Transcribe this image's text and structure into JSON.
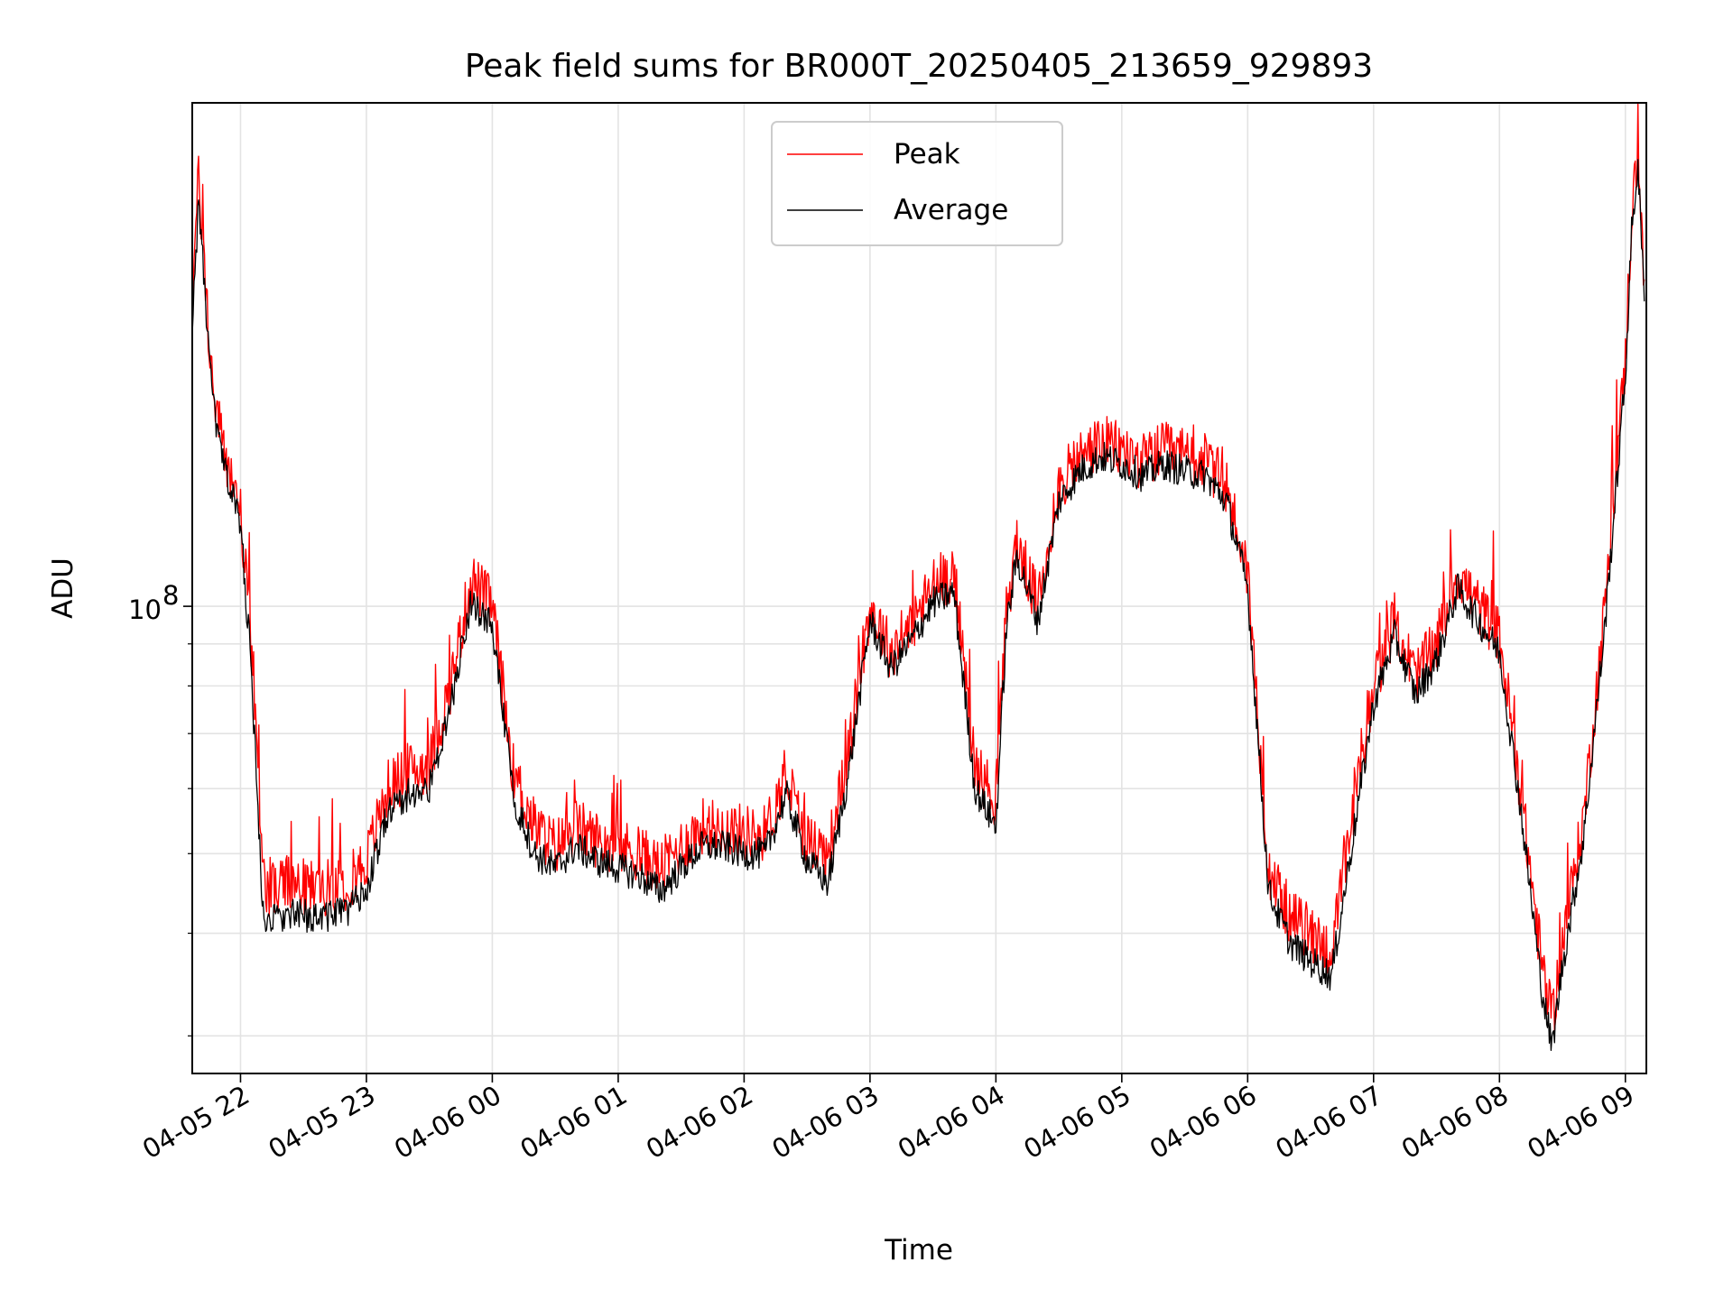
{
  "chart_data": {
    "type": "line",
    "title": "Peak field sums for BR000T_20250405_213659_929893",
    "xlabel": "Time",
    "ylabel": "ADU",
    "y_scale": "log",
    "ylim": [
      27000000,
      410000000
    ],
    "x_ticks": [
      "04-05 22",
      "04-05 23",
      "04-06 00",
      "04-06 01",
      "04-06 02",
      "04-06 03",
      "04-06 04",
      "04-06 05",
      "04-06 06",
      "04-06 07",
      "04-06 08",
      "04-06 09"
    ],
    "y_ticks": [
      {
        "value": 100000000,
        "label": "10",
        "exponent": "8"
      }
    ],
    "y_minor_gridlines": [
      30000000,
      40000000,
      50000000,
      60000000,
      70000000,
      80000000,
      90000000
    ],
    "grid": true,
    "legend_position": "top-center",
    "series": [
      {
        "name": "Peak",
        "color": "#ff0000",
        "x": [
          "04-05 21:37",
          "04-05 21:40",
          "04-05 21:42",
          "04-05 21:45",
          "04-05 21:48",
          "04-05 21:52",
          "04-05 21:56",
          "04-05 22:00",
          "04-05 22:05",
          "04-05 22:10",
          "04-05 22:12",
          "04-05 22:15",
          "04-05 22:20",
          "04-05 22:30",
          "04-05 22:40",
          "04-05 22:50",
          "04-05 23:00",
          "04-05 23:10",
          "04-05 23:20",
          "04-05 23:30",
          "04-05 23:40",
          "04-05 23:50",
          "04-06 00:00",
          "04-06 00:10",
          "04-06 00:20",
          "04-06 00:30",
          "04-06 00:40",
          "04-06 00:50",
          "04-06 01:00",
          "04-06 01:10",
          "04-06 01:20",
          "04-06 01:30",
          "04-06 01:40",
          "04-06 01:50",
          "04-06 02:00",
          "04-06 02:10",
          "04-06 02:20",
          "04-06 02:30",
          "04-06 02:40",
          "04-06 02:50",
          "04-06 03:00",
          "04-06 03:10",
          "04-06 03:20",
          "04-06 03:30",
          "04-06 03:40",
          "04-06 03:50",
          "04-06 04:00",
          "04-06 04:05",
          "04-06 04:10",
          "04-06 04:20",
          "04-06 04:30",
          "04-06 04:40",
          "04-06 04:50",
          "04-06 05:00",
          "04-06 05:10",
          "04-06 05:20",
          "04-06 05:30",
          "04-06 05:40",
          "04-06 05:50",
          "04-06 06:00",
          "04-06 06:10",
          "04-06 06:20",
          "04-06 06:30",
          "04-06 06:40",
          "04-06 06:50",
          "04-06 07:00",
          "04-06 07:10",
          "04-06 07:20",
          "04-06 07:30",
          "04-06 07:40",
          "04-06 07:50",
          "04-06 08:00",
          "04-06 08:10",
          "04-06 08:20",
          "04-06 08:25",
          "04-06 08:30",
          "04-06 08:40",
          "04-06 08:50",
          "04-06 09:00",
          "04-06 09:03",
          "04-06 09:06",
          "04-06 09:09"
        ],
        "values": [
          240000000,
          330000000,
          280000000,
          210000000,
          175000000,
          155000000,
          143000000,
          131000000,
          90000000,
          50000000,
          46000000,
          45000000,
          46000000,
          45500000,
          45500000,
          46000000,
          49000000,
          60000000,
          63000000,
          64000000,
          80000000,
          108000000,
          100000000,
          63000000,
          54000000,
          51000000,
          54000000,
          52000000,
          51000000,
          50000000,
          48000000,
          51000000,
          54000000,
          54000000,
          53000000,
          53000000,
          62000000,
          52000000,
          50000000,
          67000000,
          100000000,
          88000000,
          95000000,
          106000000,
          110000000,
          64000000,
          58000000,
          98000000,
          120000000,
          100000000,
          140000000,
          152000000,
          158000000,
          155000000,
          150000000,
          155000000,
          152000000,
          150000000,
          140000000,
          110000000,
          48000000,
          42000000,
          40000000,
          38000000,
          55000000,
          80000000,
          96000000,
          82000000,
          90000000,
          110000000,
          100000000,
          92000000,
          60000000,
          37000000,
          31000000,
          39000000,
          55000000,
          98000000,
          200000000,
          300000000,
          360000000,
          250000000
        ]
      },
      {
        "name": "Average",
        "color": "#000000",
        "x": [
          "04-05 21:37",
          "04-05 21:40",
          "04-05 21:42",
          "04-05 21:45",
          "04-05 21:48",
          "04-05 21:52",
          "04-05 21:56",
          "04-05 22:00",
          "04-05 22:05",
          "04-05 22:10",
          "04-05 22:12",
          "04-05 22:15",
          "04-05 22:20",
          "04-05 22:30",
          "04-05 22:40",
          "04-05 22:50",
          "04-05 23:00",
          "04-05 23:10",
          "04-05 23:20",
          "04-05 23:30",
          "04-05 23:40",
          "04-05 23:50",
          "04-06 00:00",
          "04-06 00:10",
          "04-06 00:20",
          "04-06 00:30",
          "04-06 00:40",
          "04-06 00:50",
          "04-06 01:00",
          "04-06 01:10",
          "04-06 01:20",
          "04-06 01:30",
          "04-06 01:40",
          "04-06 01:50",
          "04-06 02:00",
          "04-06 02:10",
          "04-06 02:20",
          "04-06 02:30",
          "04-06 02:40",
          "04-06 02:50",
          "04-06 03:00",
          "04-06 03:10",
          "04-06 03:20",
          "04-06 03:30",
          "04-06 03:40",
          "04-06 03:50",
          "04-06 04:00",
          "04-06 04:05",
          "04-06 04:10",
          "04-06 04:20",
          "04-06 04:30",
          "04-06 04:40",
          "04-06 04:50",
          "04-06 05:00",
          "04-06 05:10",
          "04-06 05:20",
          "04-06 05:30",
          "04-06 05:40",
          "04-06 05:50",
          "04-06 06:00",
          "04-06 06:10",
          "04-06 06:20",
          "04-06 06:30",
          "04-06 06:40",
          "04-06 06:50",
          "04-06 07:00",
          "04-06 07:10",
          "04-06 07:20",
          "04-06 07:30",
          "04-06 07:40",
          "04-06 07:50",
          "04-06 08:00",
          "04-06 08:10",
          "04-06 08:20",
          "04-06 08:25",
          "04-06 08:30",
          "04-06 08:40",
          "04-06 08:50",
          "04-06 09:00",
          "04-06 09:03",
          "04-06 09:06",
          "04-06 09:09"
        ],
        "values": [
          220000000,
          310000000,
          265000000,
          200000000,
          168000000,
          148000000,
          137000000,
          126000000,
          85000000,
          46000000,
          42000000,
          41500000,
          42000000,
          42000000,
          42000000,
          42500000,
          45000000,
          56000000,
          59000000,
          60000000,
          75000000,
          102000000,
          94000000,
          59000000,
          50000000,
          48000000,
          51000000,
          49000000,
          48000000,
          47000000,
          45000000,
          48000000,
          51000000,
          51000000,
          50000000,
          50000000,
          59000000,
          49000000,
          46000000,
          63000000,
          96000000,
          84000000,
          91000000,
          101000000,
          104000000,
          60000000,
          54000000,
          94000000,
          115000000,
          96000000,
          134000000,
          146000000,
          152000000,
          149000000,
          144000000,
          149000000,
          146000000,
          144000000,
          134000000,
          105000000,
          45000000,
          39000000,
          37000000,
          35500000,
          52000000,
          76000000,
          92000000,
          78000000,
          86000000,
          105000000,
          96000000,
          88000000,
          57000000,
          34500000,
          29000000,
          36500000,
          52000000,
          93000000,
          190000000,
          285000000,
          345000000,
          235000000
        ]
      }
    ]
  }
}
